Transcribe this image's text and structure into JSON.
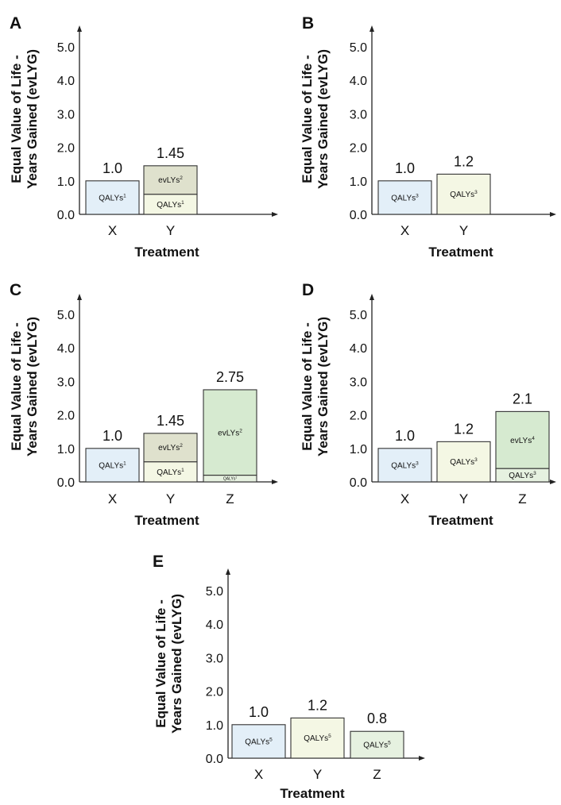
{
  "chart_data": [
    {
      "panel": "A",
      "type": "bar",
      "stacked": true,
      "categories": [
        "X",
        "Y"
      ],
      "xlabel": "Treatment",
      "ylabel": [
        "Equal Value of Life -",
        "Years Gained (evLYG)"
      ],
      "yticks": [
        "0.0",
        "1.0",
        "2.0",
        "3.0",
        "4.0",
        "5.0"
      ],
      "ylim": [
        0,
        5.5
      ],
      "bars": [
        {
          "category": "X",
          "total": 1.0,
          "total_label": "1.0",
          "segments": [
            {
              "label": "QALYs",
              "sup": "1",
              "value": 1.0,
              "color": "#e3eff8"
            }
          ]
        },
        {
          "category": "Y",
          "total": 1.45,
          "total_label": "1.45",
          "segments": [
            {
              "label": "QALYs",
              "sup": "1",
              "value": 0.6,
              "color": "#f4f7e4"
            },
            {
              "label": "evLYs",
              "sup": "2",
              "value": 0.85,
              "color": "#dfe1cd"
            }
          ]
        }
      ]
    },
    {
      "panel": "B",
      "type": "bar",
      "stacked": true,
      "categories": [
        "X",
        "Y"
      ],
      "xlabel": "Treatment",
      "ylabel": [
        "Equal Value of Life -",
        "Years Gained (evLYG)"
      ],
      "yticks": [
        "0.0",
        "1.0",
        "2.0",
        "3.0",
        "4.0",
        "5.0"
      ],
      "ylim": [
        0,
        5.5
      ],
      "bars": [
        {
          "category": "X",
          "total": 1.0,
          "total_label": "1.0",
          "segments": [
            {
              "label": "QALYs",
              "sup": "3",
              "value": 1.0,
              "color": "#e3eff8"
            }
          ]
        },
        {
          "category": "Y",
          "total": 1.2,
          "total_label": "1.2",
          "segments": [
            {
              "label": "QALYs",
              "sup": "3",
              "value": 1.2,
              "color": "#f4f7e4"
            }
          ]
        }
      ]
    },
    {
      "panel": "C",
      "type": "bar",
      "stacked": true,
      "categories": [
        "X",
        "Y",
        "Z"
      ],
      "xlabel": "Treatment",
      "ylabel": [
        "Equal Value of Life -",
        "Years Gained (evLYG)"
      ],
      "yticks": [
        "0.0",
        "1.0",
        "2.0",
        "3.0",
        "4.0",
        "5.0"
      ],
      "ylim": [
        0,
        5.5
      ],
      "bars": [
        {
          "category": "X",
          "total": 1.0,
          "total_label": "1.0",
          "segments": [
            {
              "label": "QALYs",
              "sup": "1",
              "value": 1.0,
              "color": "#e3eff8"
            }
          ]
        },
        {
          "category": "Y",
          "total": 1.45,
          "total_label": "1.45",
          "segments": [
            {
              "label": "QALYs",
              "sup": "1",
              "value": 0.6,
              "color": "#f4f7e4"
            },
            {
              "label": "evLYs",
              "sup": "2",
              "value": 0.85,
              "color": "#dfe1cd"
            }
          ]
        },
        {
          "category": "Z",
          "total": 2.75,
          "total_label": "2.75",
          "segments": [
            {
              "label": "QALYs",
              "sup": "1",
              "value": 0.2,
              "color": "#e6f1e0",
              "small": true
            },
            {
              "label": "evLYs",
              "sup": "2",
              "value": 2.55,
              "color": "#d6ead0"
            }
          ]
        }
      ]
    },
    {
      "panel": "D",
      "type": "bar",
      "stacked": true,
      "categories": [
        "X",
        "Y",
        "Z"
      ],
      "xlabel": "Treatment",
      "ylabel": [
        "Equal Value of Life -",
        "Years Gained (evLYG)"
      ],
      "yticks": [
        "0.0",
        "1.0",
        "2.0",
        "3.0",
        "4.0",
        "5.0"
      ],
      "ylim": [
        0,
        5.5
      ],
      "bars": [
        {
          "category": "X",
          "total": 1.0,
          "total_label": "1.0",
          "segments": [
            {
              "label": "QALYs",
              "sup": "3",
              "value": 1.0,
              "color": "#e3eff8"
            }
          ]
        },
        {
          "category": "Y",
          "total": 1.2,
          "total_label": "1.2",
          "segments": [
            {
              "label": "QALYs",
              "sup": "3",
              "value": 1.2,
              "color": "#f4f7e4"
            }
          ]
        },
        {
          "category": "Z",
          "total": 2.1,
          "total_label": "2.1",
          "segments": [
            {
              "label": "QALYs",
              "sup": "3",
              "value": 0.4,
              "color": "#e6f1e0"
            },
            {
              "label": "evLYs",
              "sup": "4",
              "value": 1.7,
              "color": "#d6ead0"
            }
          ]
        }
      ]
    },
    {
      "panel": "E",
      "type": "bar",
      "stacked": true,
      "categories": [
        "X",
        "Y",
        "Z"
      ],
      "xlabel": "Treatment",
      "ylabel": [
        "Equal Value of Life -",
        "Years Gained (evLYG)"
      ],
      "yticks": [
        "0.0",
        "1.0",
        "2.0",
        "3.0",
        "4.0",
        "5.0"
      ],
      "ylim": [
        0,
        5.5
      ],
      "bars": [
        {
          "category": "X",
          "total": 1.0,
          "total_label": "1.0",
          "segments": [
            {
              "label": "QALYs",
              "sup": "5",
              "value": 1.0,
              "color": "#e3eff8"
            }
          ]
        },
        {
          "category": "Y",
          "total": 1.2,
          "total_label": "1.2",
          "segments": [
            {
              "label": "QALYs",
              "sup": "5",
              "value": 1.2,
              "color": "#f4f7e4"
            }
          ]
        },
        {
          "category": "Z",
          "total": 0.8,
          "total_label": "0.8",
          "segments": [
            {
              "label": "QALYs",
              "sup": "5",
              "value": 0.8,
              "color": "#e6f1e0"
            }
          ]
        }
      ]
    }
  ]
}
